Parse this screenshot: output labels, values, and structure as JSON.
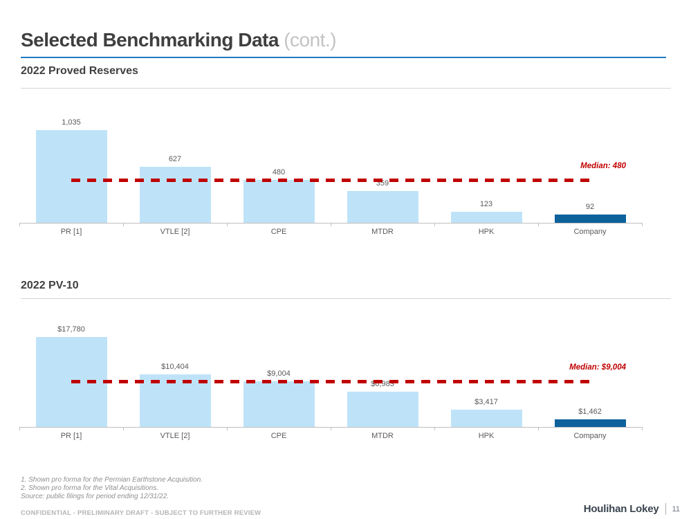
{
  "slide": {
    "title": "Selected Benchmarking Data",
    "title_suffix": "(cont.)",
    "footnotes": [
      "1. Shown pro forma for the Permian Earthstone Acquisition.",
      "2. Shown pro forma for the Vital Acquisitions.",
      "Source: public filings for period ending 12/31/22."
    ],
    "confidential_note": "CONFIDENTIAL - PRELIMINARY DRAFT - SUBJECT TO FURTHER REVIEW",
    "brand": "Houlihan Lokey",
    "page_number": "11"
  },
  "colors": {
    "bar_fill": "#bee3f8",
    "bar_highlight": "#0d629c",
    "median_red": "#c00000",
    "title_rule_blue": "#1e79c0",
    "axis_gray": "#bfbfbf"
  },
  "chart_data": [
    {
      "type": "bar",
      "title": "2022 Proved Reserves",
      "categories": [
        "PR [1]",
        "VTLE [2]",
        "CPE",
        "MTDR",
        "HPK",
        "Company"
      ],
      "values": [
        1035,
        627,
        480,
        359,
        123,
        92
      ],
      "value_labels": [
        "1,035",
        "627",
        "480",
        "359",
        "123",
        "92"
      ],
      "highlight_index": 5,
      "median": 480,
      "median_label": "Median: 480",
      "value_axis": "hidden",
      "grid": false,
      "ylim": [
        0,
        1035
      ]
    },
    {
      "type": "bar",
      "title": "2022 PV-10",
      "categories": [
        "PR [1]",
        "VTLE [2]",
        "CPE",
        "MTDR",
        "HPK",
        "Company"
      ],
      "values": [
        17780,
        10404,
        9004,
        6983,
        3417,
        1462
      ],
      "value_labels": [
        "$17,780",
        "$10,404",
        "$9,004",
        "$6,983",
        "$3,417",
        "$1,462"
      ],
      "highlight_index": 5,
      "median": 9004,
      "median_label": "Median: $9,004",
      "value_axis": "hidden",
      "grid": false,
      "ylim": [
        0,
        17780
      ]
    }
  ]
}
